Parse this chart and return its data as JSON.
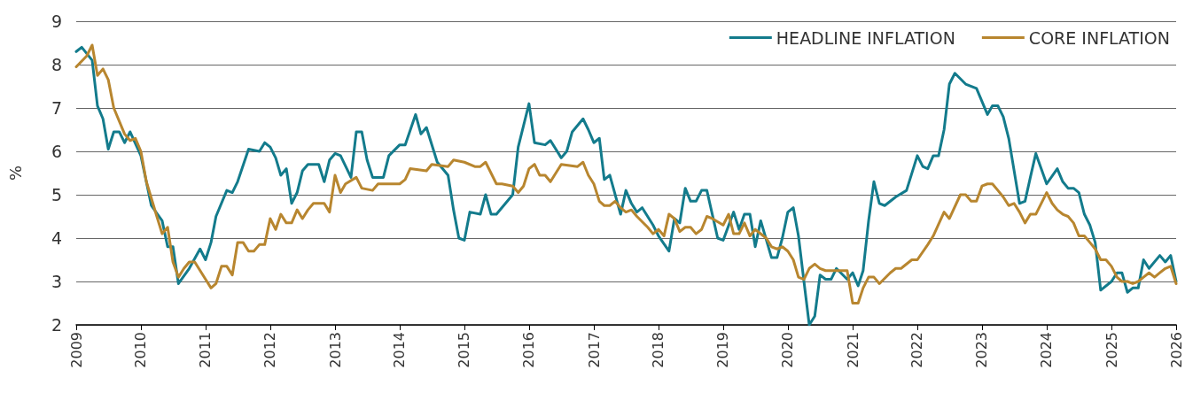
{
  "chart_data": {
    "type": "line",
    "ylabel": "%",
    "xlim": [
      "2009",
      "2026"
    ],
    "xticks": [
      "2009",
      "2010",
      "2011",
      "2012",
      "2013",
      "2014",
      "2015",
      "2016",
      "2017",
      "2018",
      "2019",
      "2020",
      "2021",
      "2022",
      "2023",
      "2024",
      "2025",
      "2026"
    ],
    "ylim": [
      2,
      9
    ],
    "yticks": [
      2,
      3,
      4,
      5,
      6,
      7,
      8,
      9
    ],
    "grid": "y",
    "legend": "top right",
    "marker": "none",
    "line_style": "solid",
    "series": [
      {
        "name": "HEADLINE INFLATION",
        "color": "#137b8c",
        "x": [
          "2009-01",
          "2009-02",
          "2009-04",
          "2009-05",
          "2009-06",
          "2009-07",
          "2009-08",
          "2009-09",
          "2009-10",
          "2009-11",
          "2010-01",
          "2010-03",
          "2010-05",
          "2010-06",
          "2010-07",
          "2010-08",
          "2010-10",
          "2010-12",
          "2011-01",
          "2011-02",
          "2011-03",
          "2011-05",
          "2011-06",
          "2011-07",
          "2011-09",
          "2011-11",
          "2011-12",
          "2012-01",
          "2012-02",
          "2012-03",
          "2012-04",
          "2012-05",
          "2012-06",
          "2012-07",
          "2012-08",
          "2012-10",
          "2012-11",
          "2012-12",
          "2013-01",
          "2013-02",
          "2013-04",
          "2013-05",
          "2013-06",
          "2013-07",
          "2013-08",
          "2013-10",
          "2013-11",
          "2014-01",
          "2014-02",
          "2014-04",
          "2014-05",
          "2014-06",
          "2014-08",
          "2014-10",
          "2014-11",
          "2014-12",
          "2015-01",
          "2015-02",
          "2015-04",
          "2015-05",
          "2015-06",
          "2015-07",
          "2015-10",
          "2015-11",
          "2016-01",
          "2016-02",
          "2016-04",
          "2016-05",
          "2016-07",
          "2016-08",
          "2016-09",
          "2016-11",
          "2016-12",
          "2017-01",
          "2017-02",
          "2017-03",
          "2017-04",
          "2017-06",
          "2017-07",
          "2017-08",
          "2017-09",
          "2017-10",
          "2017-12",
          "2018-01",
          "2018-03",
          "2018-04",
          "2018-05",
          "2018-06",
          "2018-07",
          "2018-08",
          "2018-09",
          "2018-10",
          "2018-12",
          "2019-01",
          "2019-03",
          "2019-04",
          "2019-05",
          "2019-06",
          "2019-07",
          "2019-08",
          "2019-10",
          "2019-11",
          "2019-12",
          "2020-01",
          "2020-02",
          "2020-03",
          "2020-04",
          "2020-05",
          "2020-06",
          "2020-07",
          "2020-08",
          "2020-09",
          "2020-10",
          "2020-12",
          "2021-01",
          "2021-02",
          "2021-03",
          "2021-04",
          "2021-05",
          "2021-06",
          "2021-07",
          "2021-09",
          "2021-11",
          "2022-01",
          "2022-02",
          "2022-03",
          "2022-04",
          "2022-05",
          "2022-06",
          "2022-07",
          "2022-08",
          "2022-10",
          "2022-12",
          "2023-02",
          "2023-03",
          "2023-04",
          "2023-05",
          "2023-06",
          "2023-08",
          "2023-09",
          "2023-10",
          "2023-11",
          "2024-01",
          "2024-03",
          "2024-04",
          "2024-05",
          "2024-06",
          "2024-07",
          "2024-08",
          "2024-09",
          "2024-10",
          "2024-11",
          "2025-01",
          "2025-02",
          "2025-03",
          "2025-04",
          "2025-05",
          "2025-06",
          "2025-07",
          "2025-08",
          "2025-10",
          "2025-11",
          "2025-12",
          "2026-01"
        ],
        "values": [
          8.3,
          8.4,
          8.1,
          7.05,
          6.75,
          6.05,
          6.45,
          6.45,
          6.2,
          6.45,
          5.9,
          4.75,
          4.4,
          3.8,
          3.8,
          2.95,
          3.3,
          3.75,
          3.5,
          3.9,
          4.5,
          5.1,
          5.05,
          5.3,
          6.05,
          6.0,
          6.2,
          6.1,
          5.85,
          5.45,
          5.6,
          4.8,
          5.05,
          5.55,
          5.7,
          5.7,
          5.3,
          5.8,
          5.95,
          5.9,
          5.4,
          6.45,
          6.45,
          5.8,
          5.4,
          5.4,
          5.9,
          6.15,
          6.15,
          6.85,
          6.4,
          6.55,
          5.75,
          5.45,
          4.65,
          4.0,
          3.95,
          4.6,
          4.55,
          5.0,
          4.55,
          4.55,
          5.0,
          6.1,
          7.1,
          6.2,
          6.15,
          6.25,
          5.85,
          6.0,
          6.45,
          6.75,
          6.5,
          6.2,
          6.3,
          5.35,
          5.45,
          4.55,
          5.1,
          4.8,
          4.6,
          4.7,
          4.3,
          4.05,
          3.7,
          4.45,
          4.35,
          5.15,
          4.85,
          4.85,
          5.1,
          5.1,
          4.0,
          3.95,
          4.6,
          4.2,
          4.55,
          4.55,
          3.8,
          4.4,
          3.55,
          3.55,
          4.0,
          4.6,
          4.7,
          4.05,
          3.0,
          2.0,
          2.2,
          3.15,
          3.05,
          3.05,
          3.3,
          3.05,
          3.2,
          2.9,
          3.25,
          4.4,
          5.3,
          4.8,
          4.75,
          4.95,
          5.1,
          5.9,
          5.65,
          5.6,
          5.9,
          5.9,
          6.5,
          7.55,
          7.8,
          7.55,
          7.45,
          6.85,
          7.05,
          7.05,
          6.8,
          6.3,
          4.8,
          4.85,
          5.4,
          5.95,
          5.25,
          5.6,
          5.3,
          5.15,
          5.15,
          5.05,
          4.55,
          4.3,
          3.9,
          2.8,
          3.0,
          3.2,
          3.2,
          2.75,
          2.85,
          2.85,
          3.5,
          3.3,
          3.6,
          3.45,
          3.6,
          3.0
        ]
      },
      {
        "name": "CORE INFLATION",
        "color": "#b8862f",
        "x": [
          "2009-01",
          "2009-03",
          "2009-04",
          "2009-05",
          "2009-06",
          "2009-07",
          "2009-08",
          "2009-10",
          "2009-11",
          "2009-12",
          "2010-01",
          "2010-02",
          "2010-04",
          "2010-05",
          "2010-06",
          "2010-07",
          "2010-08",
          "2010-09",
          "2010-10",
          "2010-11",
          "2011-01",
          "2011-02",
          "2011-03",
          "2011-04",
          "2011-05",
          "2011-06",
          "2011-07",
          "2011-08",
          "2011-09",
          "2011-10",
          "2011-11",
          "2011-12",
          "2012-01",
          "2012-02",
          "2012-03",
          "2012-04",
          "2012-05",
          "2012-06",
          "2012-07",
          "2012-08",
          "2012-09",
          "2012-11",
          "2012-12",
          "2013-01",
          "2013-02",
          "2013-03",
          "2013-05",
          "2013-06",
          "2013-08",
          "2013-09",
          "2013-11",
          "2014-01",
          "2014-02",
          "2014-03",
          "2014-06",
          "2014-07",
          "2014-10",
          "2014-11",
          "2015-01",
          "2015-03",
          "2015-04",
          "2015-05",
          "2015-07",
          "2015-08",
          "2015-10",
          "2015-11",
          "2015-12",
          "2016-01",
          "2016-02",
          "2016-03",
          "2016-04",
          "2016-05",
          "2016-07",
          "2016-10",
          "2016-11",
          "2016-12",
          "2017-01",
          "2017-02",
          "2017-03",
          "2017-04",
          "2017-05",
          "2017-06",
          "2017-07",
          "2017-08",
          "2017-09",
          "2017-11",
          "2017-12",
          "2018-01",
          "2018-02",
          "2018-03",
          "2018-04",
          "2018-05",
          "2018-06",
          "2018-07",
          "2018-08",
          "2018-09",
          "2018-10",
          "2018-11",
          "2019-01",
          "2019-02",
          "2019-03",
          "2019-04",
          "2019-05",
          "2019-06",
          "2019-07",
          "2019-09",
          "2019-10",
          "2019-11",
          "2019-12",
          "2020-01",
          "2020-02",
          "2020-03",
          "2020-04",
          "2020-05",
          "2020-06",
          "2020-07",
          "2020-08",
          "2020-12",
          "2021-01",
          "2021-02",
          "2021-03",
          "2021-04",
          "2021-05",
          "2021-06",
          "2021-08",
          "2021-09",
          "2021-10",
          "2021-12",
          "2022-01",
          "2022-03",
          "2022-04",
          "2022-06",
          "2022-07",
          "2022-09",
          "2022-10",
          "2022-11",
          "2022-12",
          "2023-01",
          "2023-02",
          "2023-03",
          "2023-04",
          "2023-05",
          "2023-06",
          "2023-07",
          "2023-08",
          "2023-09",
          "2023-10",
          "2023-11",
          "2024-01",
          "2024-02",
          "2024-03",
          "2024-04",
          "2024-05",
          "2024-06",
          "2024-07",
          "2024-08",
          "2024-09",
          "2024-10",
          "2024-11",
          "2024-12",
          "2025-01",
          "2025-02",
          "2025-03",
          "2025-04",
          "2025-05",
          "2025-06",
          "2025-07",
          "2025-08",
          "2025-09",
          "2025-10",
          "2025-11",
          "2025-12",
          "2026-01"
        ],
        "values": [
          7.95,
          8.2,
          8.45,
          7.75,
          7.9,
          7.65,
          7.0,
          6.4,
          6.25,
          6.3,
          6.0,
          5.3,
          4.5,
          4.1,
          4.25,
          3.45,
          3.1,
          3.3,
          3.45,
          3.45,
          3.05,
          2.85,
          2.95,
          3.35,
          3.35,
          3.15,
          3.9,
          3.9,
          3.7,
          3.7,
          3.85,
          3.85,
          4.45,
          4.2,
          4.55,
          4.35,
          4.35,
          4.65,
          4.45,
          4.65,
          4.8,
          4.8,
          4.6,
          5.45,
          5.05,
          5.25,
          5.4,
          5.15,
          5.1,
          5.25,
          5.25,
          5.25,
          5.35,
          5.6,
          5.55,
          5.7,
          5.65,
          5.8,
          5.75,
          5.65,
          5.65,
          5.75,
          5.25,
          5.25,
          5.2,
          5.05,
          5.2,
          5.6,
          5.7,
          5.45,
          5.45,
          5.3,
          5.7,
          5.65,
          5.75,
          5.45,
          5.25,
          4.85,
          4.75,
          4.75,
          4.85,
          4.7,
          4.6,
          4.65,
          4.5,
          4.25,
          4.1,
          4.2,
          4.05,
          4.55,
          4.45,
          4.15,
          4.25,
          4.25,
          4.1,
          4.2,
          4.5,
          4.45,
          4.3,
          4.55,
          4.1,
          4.1,
          4.35,
          4.05,
          4.2,
          4.0,
          3.8,
          3.75,
          3.8,
          3.7,
          3.5,
          3.1,
          3.05,
          3.3,
          3.4,
          3.3,
          3.25,
          3.25,
          2.5,
          2.5,
          2.85,
          3.1,
          3.1,
          2.95,
          3.2,
          3.3,
          3.3,
          3.5,
          3.5,
          3.85,
          4.05,
          4.6,
          4.45,
          5.0,
          5.0,
          4.85,
          4.85,
          5.2,
          5.25,
          5.25,
          5.1,
          4.95,
          4.75,
          4.8,
          4.6,
          4.35,
          4.55,
          4.55,
          5.05,
          4.8,
          4.65,
          4.55,
          4.5,
          4.35,
          4.05,
          4.05,
          3.9,
          3.75,
          3.5,
          3.5,
          3.35,
          3.1,
          3.0,
          3.0,
          2.95,
          3.0,
          3.1,
          3.2,
          3.1,
          3.2,
          3.3,
          3.35,
          2.95
        ]
      }
    ]
  }
}
